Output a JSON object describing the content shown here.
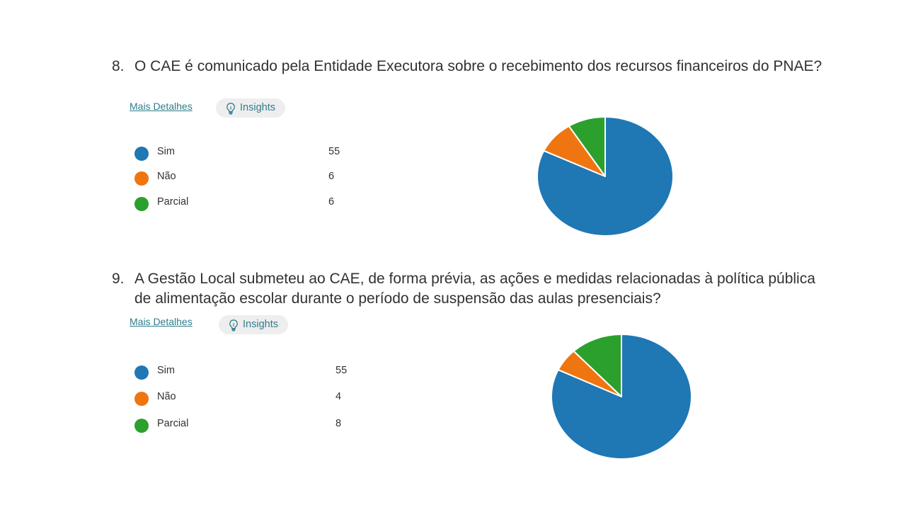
{
  "insights_label": "Insights",
  "more_label": "Mais Detalhes",
  "colors": {
    "Sim": "#1f77b4",
    "Não": "#ef7511",
    "Parcial": "#2ca02c"
  },
  "questions": [
    {
      "number": "8.",
      "text": "O CAE é comunicado pela Entidade Executora sobre o recebimento dos recursos financeiros do PNAE?"
    },
    {
      "number": "9.",
      "text": "A Gestão Local submeteu ao CAE, de forma prévia, as ações e medidas relacionadas à política pública de alimentação escolar durante o período de suspensão das aulas presenciais?"
    }
  ],
  "chart_data": [
    {
      "type": "pie",
      "categories": [
        "Sim",
        "Não",
        "Parcial"
      ],
      "values": [
        55,
        6,
        6
      ],
      "legend": "left",
      "title": ""
    },
    {
      "type": "pie",
      "categories": [
        "Sim",
        "Não",
        "Parcial"
      ],
      "values": [
        55,
        4,
        8
      ],
      "legend": "left",
      "title": ""
    }
  ]
}
